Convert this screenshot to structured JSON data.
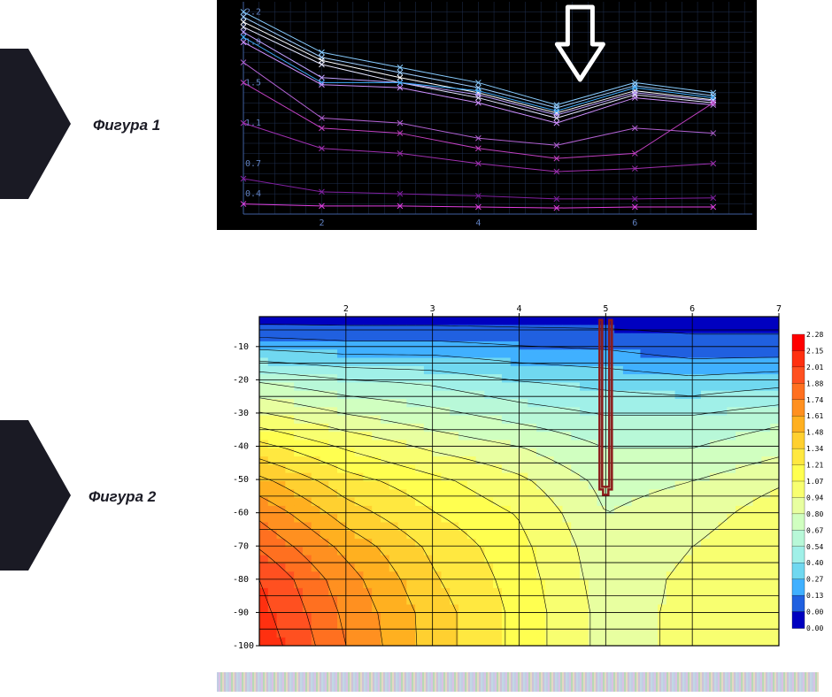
{
  "labels": {
    "fig1": "Фигура 1",
    "fig2": "Фигура 2"
  },
  "pentagon_color": "#1a1a24",
  "chart1": {
    "type": "line",
    "background": "#000000",
    "grid_color": "#203050",
    "axis_color": "#4060a0",
    "tick_color": "#6080c0",
    "tick_fontsize": 10,
    "x_ticks": [
      2,
      4,
      6
    ],
    "y_ticks": [
      0.4,
      0.7,
      1.1,
      1.5,
      1.9,
      2.2
    ],
    "xlim": [
      1,
      7.5
    ],
    "ylim": [
      0.2,
      2.3
    ],
    "arrow": {
      "x": 5.3,
      "color": "#ffffff"
    },
    "x_nodes": [
      1,
      2,
      3,
      4,
      5,
      6,
      7
    ],
    "series": [
      {
        "color": "#88ccff",
        "values": [
          2.2,
          1.8,
          1.65,
          1.5,
          1.28,
          1.5,
          1.4
        ]
      },
      {
        "color": "#a0d0ff",
        "values": [
          2.15,
          1.75,
          1.6,
          1.45,
          1.25,
          1.47,
          1.37
        ]
      },
      {
        "color": "#ffffff",
        "values": [
          2.1,
          1.72,
          1.55,
          1.4,
          1.2,
          1.42,
          1.33
        ]
      },
      {
        "color": "#e8e8ff",
        "values": [
          2.05,
          1.68,
          1.5,
          1.35,
          1.15,
          1.38,
          1.3
        ]
      },
      {
        "color": "#c0a0ff",
        "values": [
          2.0,
          1.55,
          1.5,
          1.38,
          1.18,
          1.4,
          1.32
        ]
      },
      {
        "color": "#40b0ff",
        "values": [
          1.95,
          1.5,
          1.5,
          1.42,
          1.22,
          1.45,
          1.35
        ]
      },
      {
        "color": "#d090ff",
        "values": [
          1.9,
          1.48,
          1.45,
          1.3,
          1.1,
          1.35,
          1.28
        ]
      },
      {
        "color": "#b060d0",
        "values": [
          1.7,
          1.15,
          1.1,
          0.95,
          0.88,
          1.05,
          1.0
        ]
      },
      {
        "color": "#c040c0",
        "values": [
          1.5,
          1.05,
          1.0,
          0.85,
          0.75,
          0.8,
          1.3
        ]
      },
      {
        "color": "#a030b0",
        "values": [
          1.1,
          0.85,
          0.8,
          0.7,
          0.62,
          0.65,
          0.7
        ]
      },
      {
        "color": "#8020a0",
        "values": [
          0.55,
          0.42,
          0.4,
          0.38,
          0.35,
          0.35,
          0.36
        ]
      },
      {
        "color": "#e040e0",
        "values": [
          0.3,
          0.28,
          0.28,
          0.27,
          0.26,
          0.27,
          0.27
        ]
      }
    ],
    "marker": "x",
    "line_width": 1
  },
  "chart2": {
    "type": "heatmap",
    "background": "#ffffff",
    "grid_color": "#000000",
    "contour_color": "#000000",
    "tick_fontsize": 10,
    "x_ticks": [
      2,
      3,
      4,
      5,
      6,
      7
    ],
    "y_ticks": [
      -10,
      -20,
      -30,
      -40,
      -50,
      -60,
      -70,
      -80,
      -90,
      -100
    ],
    "xlim": [
      1,
      7
    ],
    "ylim": [
      -100,
      -1
    ],
    "legend": {
      "values": [
        2.28,
        2.15,
        2.01,
        1.88,
        1.74,
        1.61,
        1.48,
        1.34,
        1.21,
        1.07,
        0.94,
        0.8,
        0.67,
        0.54,
        0.4,
        0.27,
        0.13,
        0.0
      ],
      "colors": [
        "#ff0000",
        "#ff3010",
        "#ff5020",
        "#ff7020",
        "#ff9020",
        "#ffb020",
        "#ffd030",
        "#ffe840",
        "#ffff50",
        "#f8ff70",
        "#e8ffa0",
        "#d0ffc0",
        "#b8f8d8",
        "#a0f0e8",
        "#70d8f0",
        "#40b0ff",
        "#2060e0",
        "#0000c0"
      ],
      "fontsize": 8
    },
    "marker": {
      "x": 5,
      "y_top": -2,
      "y_bot": -53,
      "color": "#8b1a1a",
      "width": 14
    },
    "grid_x": [
      1,
      2,
      3,
      4,
      5,
      6,
      7
    ],
    "grid_y": [
      -1,
      -5,
      -10,
      -15,
      -20,
      -25,
      -30,
      -35,
      -40,
      -45,
      -50,
      -55,
      -60,
      -65,
      -70,
      -75,
      -80,
      -85,
      -90,
      -95,
      -100
    ],
    "field": {
      "nx": 7,
      "ny": 11,
      "xvals": [
        1,
        2,
        3,
        4,
        5,
        6,
        7
      ],
      "yvals": [
        -1,
        -10,
        -20,
        -30,
        -40,
        -50,
        -60,
        -70,
        -80,
        -90,
        -100
      ],
      "values": [
        [
          0.05,
          0.05,
          0.05,
          0.05,
          0.05,
          0.05,
          0.05
        ],
        [
          0.4,
          0.35,
          0.35,
          0.3,
          0.27,
          0.2,
          0.2
        ],
        [
          0.8,
          0.7,
          0.65,
          0.55,
          0.5,
          0.45,
          0.5
        ],
        [
          1.1,
          0.95,
          0.85,
          0.75,
          0.67,
          0.67,
          0.75
        ],
        [
          1.4,
          1.2,
          1.05,
          0.95,
          0.8,
          0.8,
          0.9
        ],
        [
          1.65,
          1.4,
          1.25,
          1.1,
          0.9,
          0.94,
          1.05
        ],
        [
          1.85,
          1.55,
          1.35,
          1.2,
          0.94,
          1.0,
          1.15
        ],
        [
          2.0,
          1.7,
          1.45,
          1.25,
          0.98,
          1.07,
          1.21
        ],
        [
          2.15,
          1.8,
          1.5,
          1.28,
          1.0,
          1.1,
          1.21
        ],
        [
          2.2,
          1.85,
          1.55,
          1.3,
          1.02,
          1.1,
          1.21
        ],
        [
          2.25,
          1.88,
          1.55,
          1.3,
          1.02,
          1.1,
          1.2
        ]
      ]
    }
  }
}
